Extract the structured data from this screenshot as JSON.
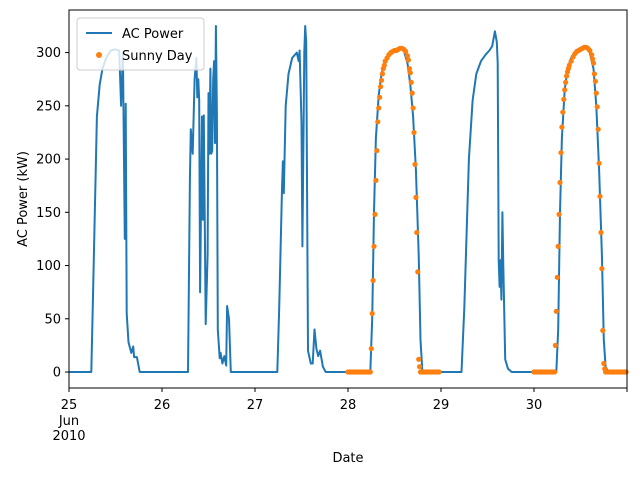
{
  "chart_data": {
    "type": "line",
    "xlabel": "Date",
    "ylabel": "AC Power (kW)",
    "xlim": [
      25.0,
      31.0
    ],
    "ylim": [
      -15,
      340
    ],
    "grid": false,
    "legend_placement": "top-left",
    "x_ticks": [
      {
        "x": 25,
        "label": "25",
        "sub": [
          "Jun",
          "2010"
        ]
      },
      {
        "x": 26,
        "label": "26"
      },
      {
        "x": 27,
        "label": "27"
      },
      {
        "x": 28,
        "label": "28"
      },
      {
        "x": 29,
        "label": "29"
      },
      {
        "x": 30,
        "label": "30"
      },
      {
        "x": 31,
        "label": ""
      }
    ],
    "y_ticks": [
      0,
      50,
      100,
      150,
      200,
      250,
      300
    ],
    "series": [
      {
        "name": "AC Power",
        "color": "#1f77b4",
        "style": "line",
        "points": [
          [
            25.0,
            0
          ],
          [
            25.24,
            0
          ],
          [
            25.26,
            80
          ],
          [
            25.3,
            240
          ],
          [
            25.33,
            270
          ],
          [
            25.36,
            285
          ],
          [
            25.4,
            295
          ],
          [
            25.45,
            302
          ],
          [
            25.5,
            303
          ],
          [
            25.54,
            302
          ],
          [
            25.56,
            250
          ],
          [
            25.58,
            300
          ],
          [
            25.6,
            125
          ],
          [
            25.61,
            252
          ],
          [
            25.62,
            55
          ],
          [
            25.64,
            28
          ],
          [
            25.67,
            18
          ],
          [
            25.69,
            24
          ],
          [
            25.7,
            14
          ],
          [
            25.73,
            14
          ],
          [
            25.76,
            0
          ],
          [
            26.0,
            0
          ],
          [
            26.28,
            0
          ],
          [
            26.3,
            180
          ],
          [
            26.31,
            228
          ],
          [
            26.33,
            205
          ],
          [
            26.35,
            275
          ],
          [
            26.37,
            295
          ],
          [
            26.38,
            258
          ],
          [
            26.39,
            275
          ],
          [
            26.4,
            255
          ],
          [
            26.41,
            75
          ],
          [
            26.43,
            240
          ],
          [
            26.44,
            143
          ],
          [
            26.45,
            241
          ],
          [
            26.47,
            45
          ],
          [
            26.49,
            110
          ],
          [
            26.5,
            262
          ],
          [
            26.51,
            205
          ],
          [
            26.52,
            285
          ],
          [
            26.53,
            205
          ],
          [
            26.54,
            208
          ],
          [
            26.55,
            275
          ],
          [
            26.56,
            292
          ],
          [
            26.57,
            215
          ],
          [
            26.58,
            325
          ],
          [
            26.59,
            242
          ],
          [
            26.6,
            40
          ],
          [
            26.62,
            13
          ],
          [
            26.63,
            18
          ],
          [
            26.65,
            8
          ],
          [
            26.67,
            15
          ],
          [
            26.69,
            6
          ],
          [
            26.7,
            62
          ],
          [
            26.72,
            50
          ],
          [
            26.74,
            0
          ],
          [
            27.0,
            0
          ],
          [
            27.24,
            0
          ],
          [
            27.26,
            60
          ],
          [
            27.29,
            172
          ],
          [
            27.3,
            198
          ],
          [
            27.31,
            168
          ],
          [
            27.33,
            250
          ],
          [
            27.36,
            280
          ],
          [
            27.4,
            295
          ],
          [
            27.45,
            300
          ],
          [
            27.47,
            292
          ],
          [
            27.48,
            302
          ],
          [
            27.5,
            234
          ],
          [
            27.51,
            118
          ],
          [
            27.53,
            300
          ],
          [
            27.54,
            325
          ],
          [
            27.55,
            310
          ],
          [
            27.57,
            20
          ],
          [
            27.6,
            8
          ],
          [
            27.62,
            8
          ],
          [
            27.64,
            40
          ],
          [
            27.66,
            22
          ],
          [
            27.68,
            15
          ],
          [
            27.7,
            20
          ],
          [
            27.73,
            5
          ],
          [
            27.76,
            0
          ],
          [
            28.0,
            0
          ],
          [
            28.24,
            0
          ],
          [
            28.26,
            50
          ],
          [
            28.28,
            150
          ],
          [
            28.3,
            220
          ],
          [
            28.33,
            260
          ],
          [
            28.36,
            280
          ],
          [
            28.4,
            293
          ],
          [
            28.45,
            300
          ],
          [
            28.5,
            303
          ],
          [
            28.55,
            304
          ],
          [
            28.6,
            302
          ],
          [
            28.64,
            290
          ],
          [
            28.67,
            270
          ],
          [
            28.7,
            240
          ],
          [
            28.73,
            190
          ],
          [
            28.76,
            110
          ],
          [
            28.78,
            30
          ],
          [
            28.8,
            0
          ],
          [
            29.0,
            0
          ],
          [
            29.22,
            0
          ],
          [
            29.25,
            60
          ],
          [
            29.3,
            200
          ],
          [
            29.34,
            255
          ],
          [
            29.38,
            280
          ],
          [
            29.43,
            292
          ],
          [
            29.48,
            298
          ],
          [
            29.52,
            302
          ],
          [
            29.55,
            306
          ],
          [
            29.58,
            320
          ],
          [
            29.6,
            310
          ],
          [
            29.61,
            290
          ],
          [
            29.62,
            105
          ],
          [
            29.63,
            80
          ],
          [
            29.64,
            105
          ],
          [
            29.65,
            68
          ],
          [
            29.66,
            150
          ],
          [
            29.67,
            100
          ],
          [
            29.69,
            12
          ],
          [
            29.72,
            3
          ],
          [
            29.76,
            0
          ],
          [
            30.0,
            0
          ],
          [
            30.24,
            0
          ],
          [
            30.26,
            40
          ],
          [
            30.28,
            150
          ],
          [
            30.3,
            220
          ],
          [
            30.33,
            265
          ],
          [
            30.36,
            285
          ],
          [
            30.4,
            295
          ],
          [
            30.45,
            302
          ],
          [
            30.5,
            304
          ],
          [
            30.55,
            305
          ],
          [
            30.6,
            300
          ],
          [
            30.64,
            285
          ],
          [
            30.67,
            250
          ],
          [
            30.7,
            190
          ],
          [
            30.73,
            110
          ],
          [
            30.75,
            30
          ],
          [
            30.77,
            5
          ],
          [
            30.8,
            0
          ],
          [
            31.0,
            0
          ]
        ]
      },
      {
        "name": "Sunny Day",
        "color": "#ff7f0e",
        "style": "dots",
        "points": [
          [
            28.0,
            0
          ],
          [
            28.02,
            0
          ],
          [
            28.04,
            0
          ],
          [
            28.06,
            0
          ],
          [
            28.08,
            0
          ],
          [
            28.1,
            0
          ],
          [
            28.12,
            0
          ],
          [
            28.14,
            0
          ],
          [
            28.16,
            0
          ],
          [
            28.18,
            0
          ],
          [
            28.2,
            0
          ],
          [
            28.22,
            0
          ],
          [
            28.24,
            0
          ],
          [
            28.25,
            22
          ],
          [
            28.26,
            55
          ],
          [
            28.27,
            86
          ],
          [
            28.28,
            118
          ],
          [
            28.29,
            148
          ],
          [
            28.3,
            180
          ],
          [
            28.31,
            208
          ],
          [
            28.32,
            235
          ],
          [
            28.33,
            248
          ],
          [
            28.34,
            258
          ],
          [
            28.35,
            268
          ],
          [
            28.36,
            274
          ],
          [
            28.37,
            280
          ],
          [
            28.38,
            285
          ],
          [
            28.39,
            288
          ],
          [
            28.4,
            292
          ],
          [
            28.42,
            295
          ],
          [
            28.44,
            298
          ],
          [
            28.46,
            300
          ],
          [
            28.48,
            301
          ],
          [
            28.5,
            302
          ],
          [
            28.52,
            302
          ],
          [
            28.54,
            303
          ],
          [
            28.56,
            304
          ],
          [
            28.58,
            304
          ],
          [
            28.6,
            303
          ],
          [
            28.62,
            301
          ],
          [
            28.64,
            297
          ],
          [
            28.65,
            293
          ],
          [
            28.66,
            285
          ],
          [
            28.67,
            281
          ],
          [
            28.68,
            272
          ],
          [
            28.69,
            262
          ],
          [
            28.7,
            248
          ],
          [
            28.71,
            225
          ],
          [
            28.72,
            195
          ],
          [
            28.73,
            164
          ],
          [
            28.74,
            131
          ],
          [
            28.75,
            94
          ],
          [
            28.76,
            12
          ],
          [
            28.77,
            5
          ],
          [
            28.78,
            0
          ],
          [
            28.8,
            0
          ],
          [
            28.82,
            0
          ],
          [
            28.84,
            0
          ],
          [
            28.86,
            0
          ],
          [
            28.88,
            0
          ],
          [
            28.9,
            0
          ],
          [
            28.92,
            0
          ],
          [
            28.94,
            0
          ],
          [
            28.96,
            0
          ],
          [
            28.98,
            0
          ],
          [
            30.0,
            0
          ],
          [
            30.02,
            0
          ],
          [
            30.04,
            0
          ],
          [
            30.06,
            0
          ],
          [
            30.08,
            0
          ],
          [
            30.1,
            0
          ],
          [
            30.12,
            0
          ],
          [
            30.14,
            0
          ],
          [
            30.16,
            0
          ],
          [
            30.18,
            0
          ],
          [
            30.2,
            0
          ],
          [
            30.22,
            0
          ],
          [
            30.23,
            25
          ],
          [
            30.24,
            57
          ],
          [
            30.25,
            89
          ],
          [
            30.26,
            118
          ],
          [
            30.27,
            148
          ],
          [
            30.28,
            178
          ],
          [
            30.29,
            206
          ],
          [
            30.3,
            230
          ],
          [
            30.31,
            244
          ],
          [
            30.32,
            256
          ],
          [
            30.33,
            265
          ],
          [
            30.34,
            272
          ],
          [
            30.35,
            278
          ],
          [
            30.36,
            282
          ],
          [
            30.37,
            285
          ],
          [
            30.38,
            288
          ],
          [
            30.4,
            292
          ],
          [
            30.42,
            296
          ],
          [
            30.44,
            299
          ],
          [
            30.46,
            301
          ],
          [
            30.48,
            302
          ],
          [
            30.5,
            303
          ],
          [
            30.52,
            304
          ],
          [
            30.54,
            305
          ],
          [
            30.56,
            305
          ],
          [
            30.58,
            304
          ],
          [
            30.6,
            302
          ],
          [
            30.62,
            298
          ],
          [
            30.63,
            294
          ],
          [
            30.64,
            290
          ],
          [
            30.65,
            280
          ],
          [
            30.66,
            273
          ],
          [
            30.67,
            262
          ],
          [
            30.68,
            249
          ],
          [
            30.69,
            228
          ],
          [
            30.7,
            196
          ],
          [
            30.71,
            165
          ],
          [
            30.72,
            131
          ],
          [
            30.73,
            97
          ],
          [
            30.74,
            39
          ],
          [
            30.75,
            8
          ],
          [
            30.76,
            3
          ],
          [
            30.77,
            0
          ],
          [
            30.79,
            0
          ],
          [
            30.81,
            0
          ],
          [
            30.83,
            0
          ],
          [
            30.85,
            0
          ],
          [
            30.87,
            0
          ],
          [
            30.89,
            0
          ],
          [
            30.91,
            0
          ],
          [
            30.93,
            0
          ],
          [
            30.95,
            0
          ],
          [
            30.97,
            0
          ],
          [
            30.99,
            0
          ]
        ]
      }
    ]
  }
}
